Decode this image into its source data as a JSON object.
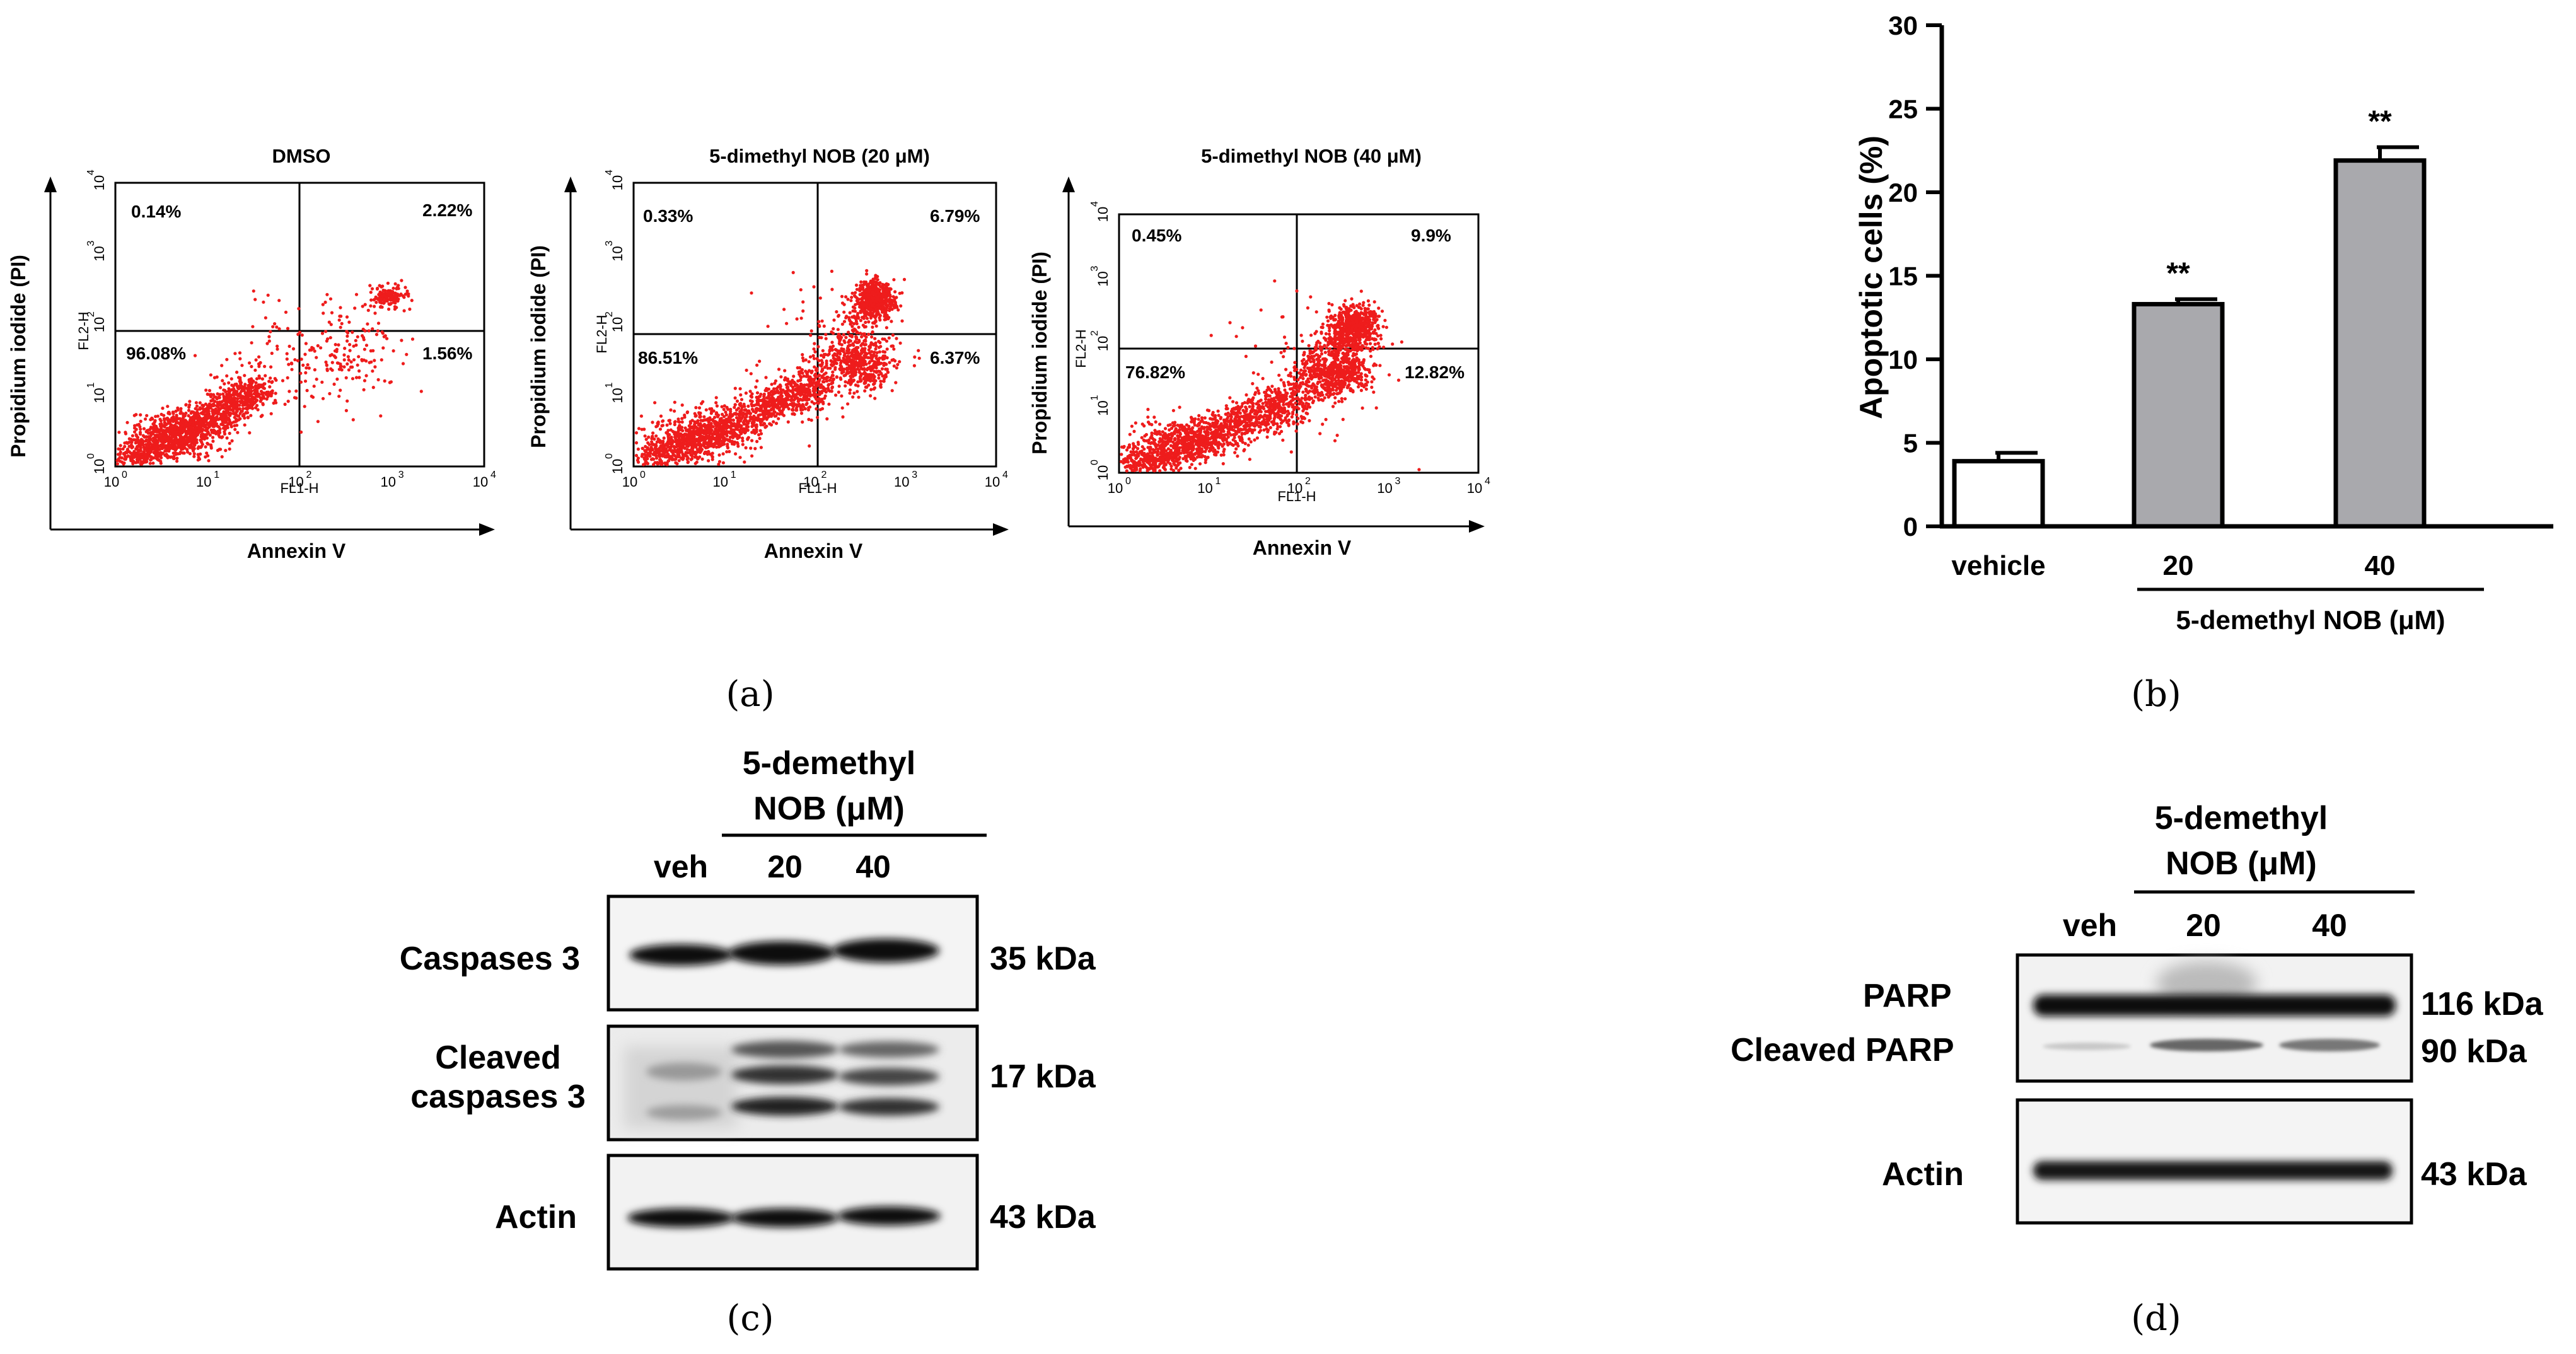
{
  "panel_a": {
    "caption": "(a)",
    "axis_x_label": "Annexin V",
    "axis_y_label": "Propidium iodide (PI)",
    "fl1_label": "FL1-H",
    "fl2_label": "FL2-H",
    "tick_labels": [
      "10",
      "10",
      "10",
      "10",
      "10"
    ],
    "tick_exponents": [
      "0",
      "1",
      "2",
      "3",
      "4"
    ],
    "plots": [
      {
        "title": "DMSO",
        "ul": "0.14%",
        "ur": "2.22%",
        "ll": "96.08%",
        "lr": "1.56%"
      },
      {
        "title": "5-dimethyl NOB (20 μM)",
        "ul": "0.33%",
        "ur": "6.79%",
        "ll": "86.51%",
        "lr": "6.37%"
      },
      {
        "title": "5-dimethyl NOB (40 μM)",
        "ul": "0.45%",
        "ur": "9.9%",
        "ll": "76.82%",
        "lr": "12.82%"
      }
    ]
  },
  "chart_data": {
    "type": "bar",
    "categories": [
      "vehicle",
      "20",
      "40"
    ],
    "values": [
      3.9,
      13.3,
      21.9
    ],
    "errors": [
      0.5,
      0.3,
      0.8
    ],
    "significance": [
      "",
      "**",
      "**"
    ],
    "ylabel": "Apoptotic cells (%)",
    "ylim": [
      0,
      30
    ],
    "yticks": [
      "0",
      "5",
      "10",
      "15",
      "20",
      "25",
      "30"
    ],
    "group_label": "5-demethyl NOB (μM)",
    "bar_colors": [
      "#ffffff",
      "#a9a9ad",
      "#a9a9ad"
    ],
    "caption": "(b)"
  },
  "panel_c": {
    "caption": "(c)",
    "header_line1": "5-demethyl",
    "header_line2": "NOB (μM)",
    "lanes": [
      "veh",
      "20",
      "40"
    ],
    "rows": [
      {
        "label": "Caspases 3",
        "kda": "35 kDa"
      },
      {
        "label": "Cleaved",
        "label2": "caspases 3",
        "kda": "17 kDa"
      },
      {
        "label": "Actin",
        "kda": "43 kDa"
      }
    ]
  },
  "panel_d": {
    "caption": "(d)",
    "header_line1": "5-demethyl",
    "header_line2": "NOB (μM)",
    "lanes": [
      "veh",
      "20",
      "40"
    ],
    "rows": [
      {
        "label": "PARP",
        "kda": "116 kDa"
      },
      {
        "label": "Cleaved PARP",
        "kda": "90 kDa"
      },
      {
        "label": "Actin",
        "kda": "43 kDa"
      }
    ]
  }
}
